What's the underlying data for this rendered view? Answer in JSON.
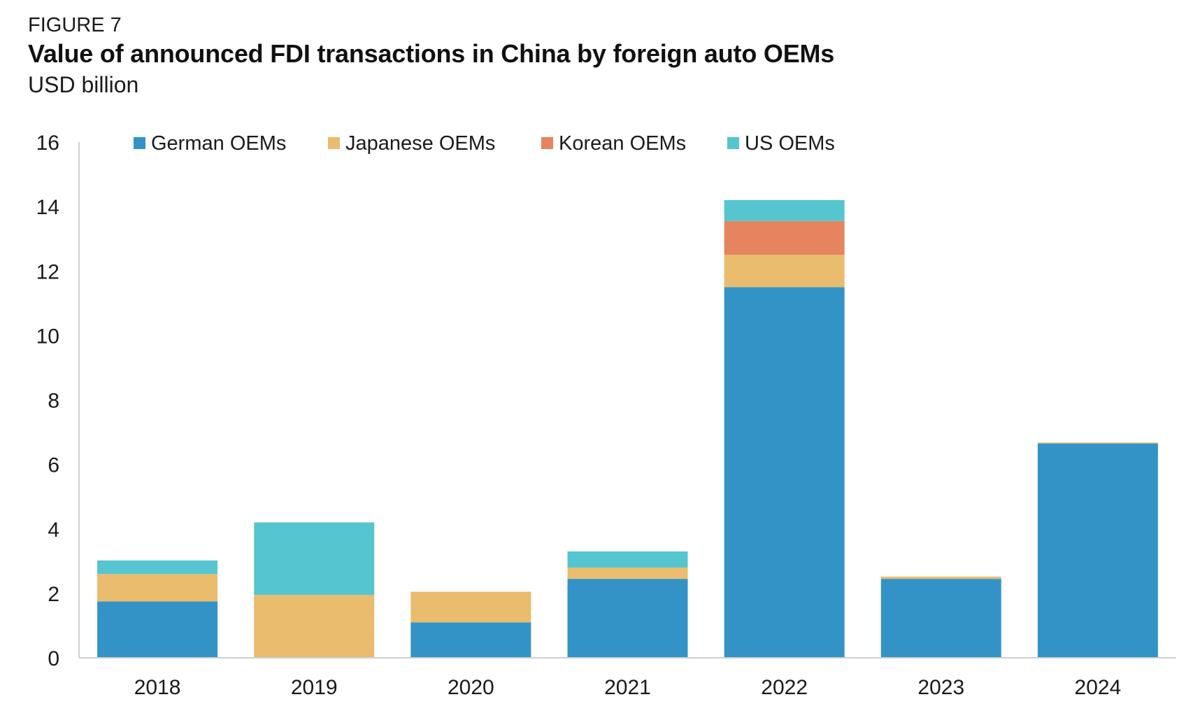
{
  "header": {
    "figure_label": "FIGURE 7",
    "title": "Value of announced FDI transactions in China by foreign auto OEMs",
    "subtitle": "USD billion"
  },
  "chart_data": {
    "type": "bar",
    "stacked": true,
    "title": "Value of announced FDI transactions in China by foreign auto OEMs",
    "ylabel": "USD billion",
    "xlabel": "",
    "categories": [
      "2018",
      "2019",
      "2020",
      "2021",
      "2022",
      "2023",
      "2024"
    ],
    "ylim": [
      0,
      16
    ],
    "yticks": [
      0,
      2,
      4,
      6,
      8,
      10,
      12,
      14,
      16
    ],
    "grid": false,
    "legend_position": "top",
    "series": [
      {
        "name": "German OEMs",
        "color": "#3393C6",
        "values": [
          1.75,
          0,
          1.1,
          2.45,
          11.5,
          2.45,
          6.65
        ]
      },
      {
        "name": "Japanese OEMs",
        "color": "#EABC6E",
        "values": [
          0.85,
          1.95,
          0.95,
          0.35,
          1.0,
          0.07,
          0.03
        ]
      },
      {
        "name": "Korean OEMs",
        "color": "#E5845F",
        "values": [
          0,
          0,
          0,
          0,
          1.05,
          0,
          0
        ]
      },
      {
        "name": "US OEMs",
        "color": "#55C5CF",
        "values": [
          0.42,
          2.25,
          0,
          0.5,
          0.65,
          0,
          0
        ]
      }
    ]
  }
}
